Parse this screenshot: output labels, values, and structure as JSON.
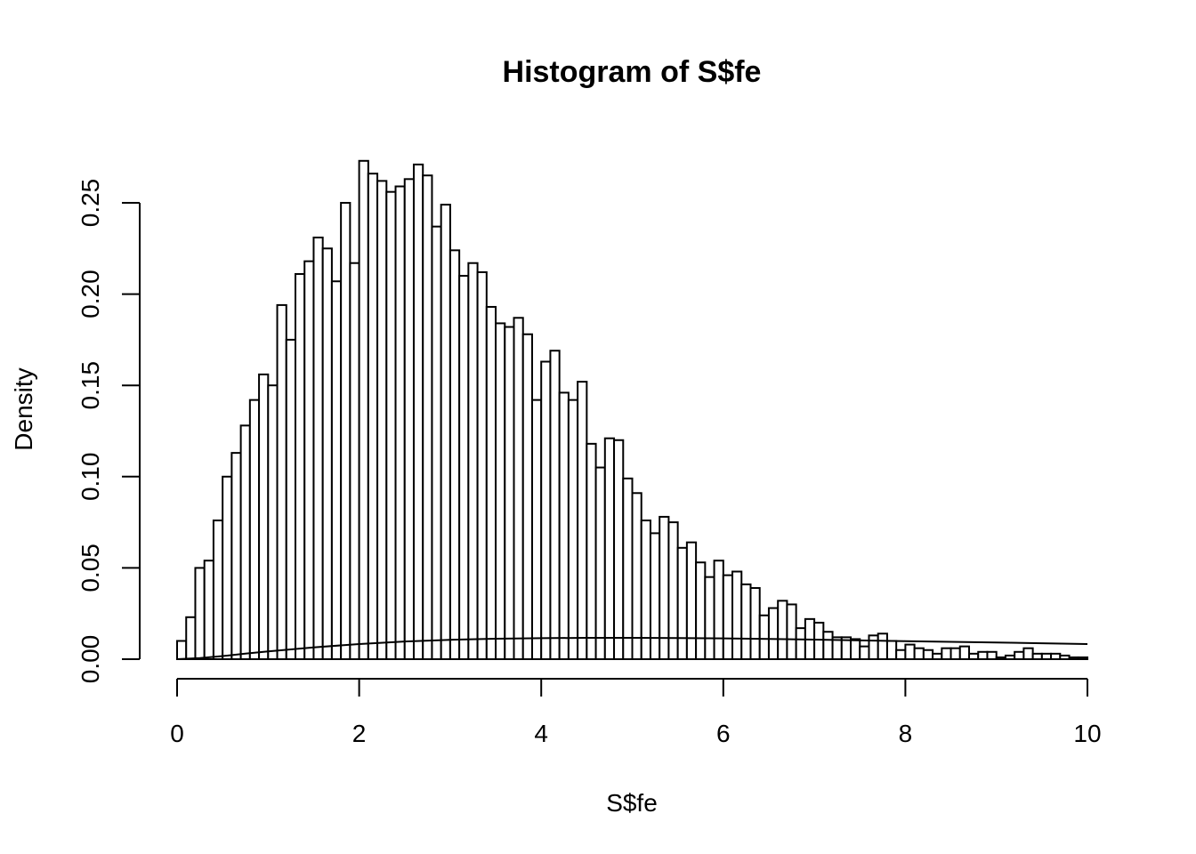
{
  "chart_data": {
    "type": "bar",
    "title": "Histogram of S$fe",
    "xlabel": "S$fe",
    "ylabel": "Density",
    "xlim": [
      0,
      10
    ],
    "ylim": [
      0,
      0.275
    ],
    "x_ticks": [
      0,
      2,
      4,
      6,
      8,
      10
    ],
    "x_tick_labels": [
      "0",
      "2",
      "4",
      "6",
      "8",
      "10"
    ],
    "y_ticks": [
      0.0,
      0.05,
      0.1,
      0.15,
      0.2,
      0.25
    ],
    "y_tick_labels": [
      "0.00",
      "0.05",
      "0.10",
      "0.15",
      "0.20",
      "0.25"
    ],
    "grid": false,
    "bin_width": 0.1,
    "bin_starts": [
      0.0,
      0.1,
      0.2,
      0.3,
      0.4,
      0.5,
      0.6,
      0.7,
      0.8,
      0.9,
      1.0,
      1.1,
      1.2,
      1.3,
      1.4,
      1.5,
      1.6,
      1.7,
      1.8,
      1.9,
      2.0,
      2.1,
      2.2,
      2.3,
      2.4,
      2.5,
      2.6,
      2.7,
      2.8,
      2.9,
      3.0,
      3.1,
      3.2,
      3.3,
      3.4,
      3.5,
      3.6,
      3.7,
      3.8,
      3.9,
      4.0,
      4.1,
      4.2,
      4.3,
      4.4,
      4.5,
      4.6,
      4.7,
      4.8,
      4.9,
      5.0,
      5.1,
      5.2,
      5.3,
      5.4,
      5.5,
      5.6,
      5.7,
      5.8,
      5.9,
      6.0,
      6.1,
      6.2,
      6.3,
      6.4,
      6.5,
      6.6,
      6.7,
      6.8,
      6.9,
      7.0,
      7.1,
      7.2,
      7.3,
      7.4,
      7.5,
      7.6,
      7.7,
      7.8,
      7.9,
      8.0,
      8.1,
      8.2,
      8.3,
      8.4,
      8.5,
      8.6,
      8.7,
      8.8,
      8.9,
      9.0,
      9.1,
      9.2,
      9.3,
      9.4,
      9.5,
      9.6,
      9.7,
      9.8,
      9.9
    ],
    "values": [
      0.01,
      0.023,
      0.05,
      0.054,
      0.076,
      0.1,
      0.113,
      0.128,
      0.142,
      0.156,
      0.15,
      0.194,
      0.175,
      0.211,
      0.218,
      0.231,
      0.225,
      0.207,
      0.25,
      0.217,
      0.273,
      0.266,
      0.262,
      0.256,
      0.259,
      0.263,
      0.271,
      0.265,
      0.237,
      0.249,
      0.224,
      0.21,
      0.217,
      0.212,
      0.193,
      0.184,
      0.182,
      0.187,
      0.178,
      0.142,
      0.163,
      0.169,
      0.146,
      0.142,
      0.152,
      0.118,
      0.105,
      0.121,
      0.12,
      0.099,
      0.091,
      0.076,
      0.069,
      0.078,
      0.075,
      0.061,
      0.064,
      0.053,
      0.045,
      0.054,
      0.046,
      0.048,
      0.041,
      0.039,
      0.024,
      0.028,
      0.032,
      0.03,
      0.017,
      0.022,
      0.02,
      0.015,
      0.012,
      0.012,
      0.011,
      0.007,
      0.013,
      0.014,
      0.01,
      0.005,
      0.008,
      0.006,
      0.005,
      0.003,
      0.006,
      0.006,
      0.007,
      0.003,
      0.004,
      0.004,
      0.001,
      0.002,
      0.004,
      0.006,
      0.003,
      0.003,
      0.003,
      0.002,
      0.001,
      0.001
    ],
    "curve": {
      "x": [
        0,
        0.25,
        0.5,
        0.75,
        1,
        1.5,
        2,
        2.5,
        3,
        3.5,
        4,
        4.5,
        5,
        5.5,
        6,
        6.5,
        7,
        7.5,
        8,
        8.5,
        9,
        9.5,
        10
      ],
      "y": [
        0.0,
        0.0006,
        0.0017,
        0.003,
        0.0043,
        0.0065,
        0.0083,
        0.0097,
        0.0106,
        0.0112,
        0.0115,
        0.0117,
        0.0117,
        0.0116,
        0.0114,
        0.0111,
        0.0107,
        0.0103,
        0.0099,
        0.0095,
        0.0091,
        0.0087,
        0.0083
      ]
    }
  }
}
